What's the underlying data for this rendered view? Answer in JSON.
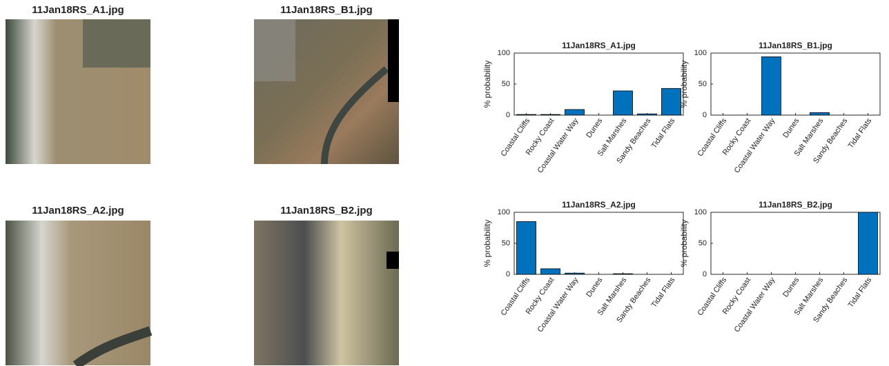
{
  "images": [
    {
      "title": "11Jan18RS_A1.jpg"
    },
    {
      "title": "11Jan18RS_B1.jpg"
    },
    {
      "title": "11Jan18RS_A2.jpg"
    },
    {
      "title": "11Jan18RS_B2.jpg"
    }
  ],
  "chart_data": [
    {
      "type": "bar",
      "title": "11Jan18RS_A1.jpg",
      "ylabel": "% probability",
      "categories": [
        "Coastal Cliffs",
        "Rocky Coast",
        "Coastal Water Way",
        "Dunes",
        "Salt Marshes",
        "Sandy Beaches",
        "Tidal Flats"
      ],
      "values": [
        1,
        1,
        9,
        0,
        39,
        2,
        43
      ],
      "color": "#0072bd",
      "ylim": [
        0,
        100
      ],
      "yticks": [
        0,
        50,
        100
      ]
    },
    {
      "type": "bar",
      "title": "11Jan18RS_B1.jpg",
      "ylabel": "% probability",
      "categories": [
        "Coastal Cliffs",
        "Rocky Coast",
        "Coastal Water Way",
        "Dunes",
        "Salt Marshes",
        "Sandy Beaches",
        "Tidal Flats"
      ],
      "values": [
        0,
        0,
        94,
        0,
        4,
        0,
        0
      ],
      "color": "#0072bd",
      "ylim": [
        0,
        100
      ],
      "yticks": [
        0,
        50,
        100
      ]
    },
    {
      "type": "bar",
      "title": "11Jan18RS_A2.jpg",
      "ylabel": "% probability",
      "categories": [
        "Coastal Cliffs",
        "Rocky Coast",
        "Coastal Water Way",
        "Dunes",
        "Salt Marshes",
        "Sandy Beaches",
        "Tidal Flats"
      ],
      "values": [
        85,
        9,
        2,
        0,
        1,
        0,
        0
      ],
      "color": "#0072bd",
      "ylim": [
        0,
        100
      ],
      "yticks": [
        0,
        50,
        100
      ]
    },
    {
      "type": "bar",
      "title": "11Jan18RS_B2.jpg",
      "ylabel": "% probability",
      "categories": [
        "Coastal Cliffs",
        "Rocky Coast",
        "Coastal Water Way",
        "Dunes",
        "Salt Marshes",
        "Sandy Beaches",
        "Tidal Flats"
      ],
      "values": [
        0,
        0,
        0,
        0,
        0,
        0,
        100
      ],
      "color": "#0072bd",
      "ylim": [
        0,
        100
      ],
      "yticks": [
        0,
        50,
        100
      ]
    }
  ]
}
